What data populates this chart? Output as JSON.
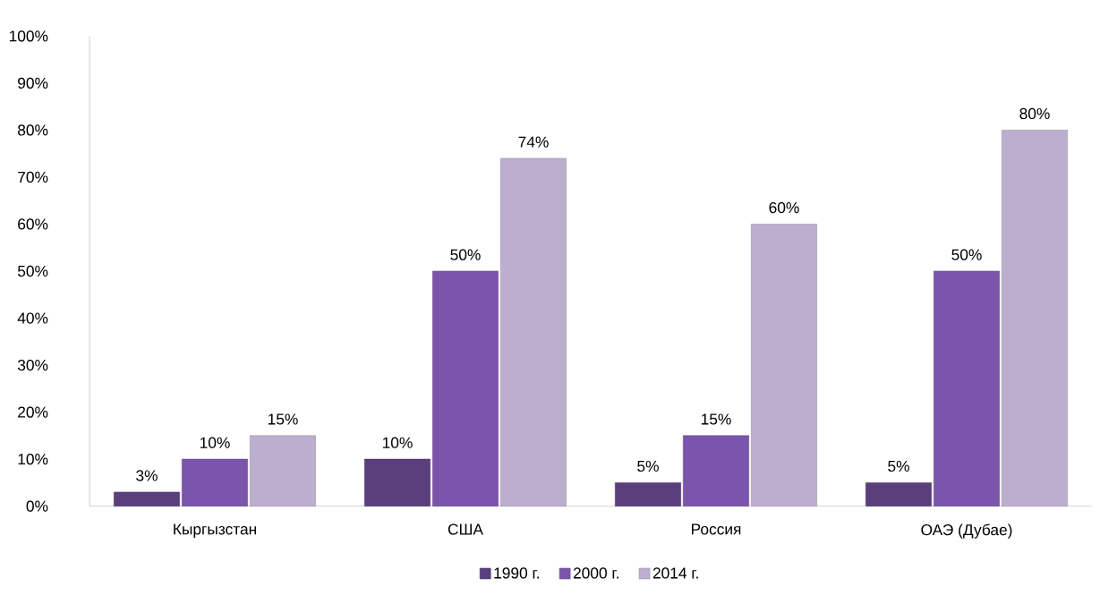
{
  "chart_data": {
    "type": "bar",
    "categories": [
      "Кыргызстан",
      "США",
      "Россия",
      "ОАЭ (Дубае)"
    ],
    "series": [
      {
        "name": "1990 г.",
        "color": "#5b3f7d",
        "values": [
          3,
          10,
          5,
          5
        ],
        "value_labels": [
          "3%",
          "10%",
          "5%",
          "5%"
        ]
      },
      {
        "name": "2000 г.",
        "color": "#7b55ab",
        "values": [
          10,
          50,
          15,
          50
        ],
        "value_labels": [
          "10%",
          "50%",
          "15%",
          "50%"
        ]
      },
      {
        "name": "2014 г.",
        "color": "#bcaecf",
        "values": [
          15,
          74,
          60,
          80
        ],
        "value_labels": [
          "15%",
          "74%",
          "60%",
          "80%"
        ]
      }
    ],
    "ylim": [
      0,
      100
    ],
    "yticks": [
      {
        "value": 0,
        "label": "0%"
      },
      {
        "value": 10,
        "label": "10%"
      },
      {
        "value": 20,
        "label": "20%"
      },
      {
        "value": 30,
        "label": "30%"
      },
      {
        "value": 40,
        "label": "40%"
      },
      {
        "value": 50,
        "label": "50%"
      },
      {
        "value": 60,
        "label": "60%"
      },
      {
        "value": 70,
        "label": "70%"
      },
      {
        "value": 80,
        "label": "80%"
      },
      {
        "value": 90,
        "label": "90%"
      },
      {
        "value": 100,
        "label": "100%"
      }
    ],
    "grid": false,
    "legend": "bottom"
  }
}
